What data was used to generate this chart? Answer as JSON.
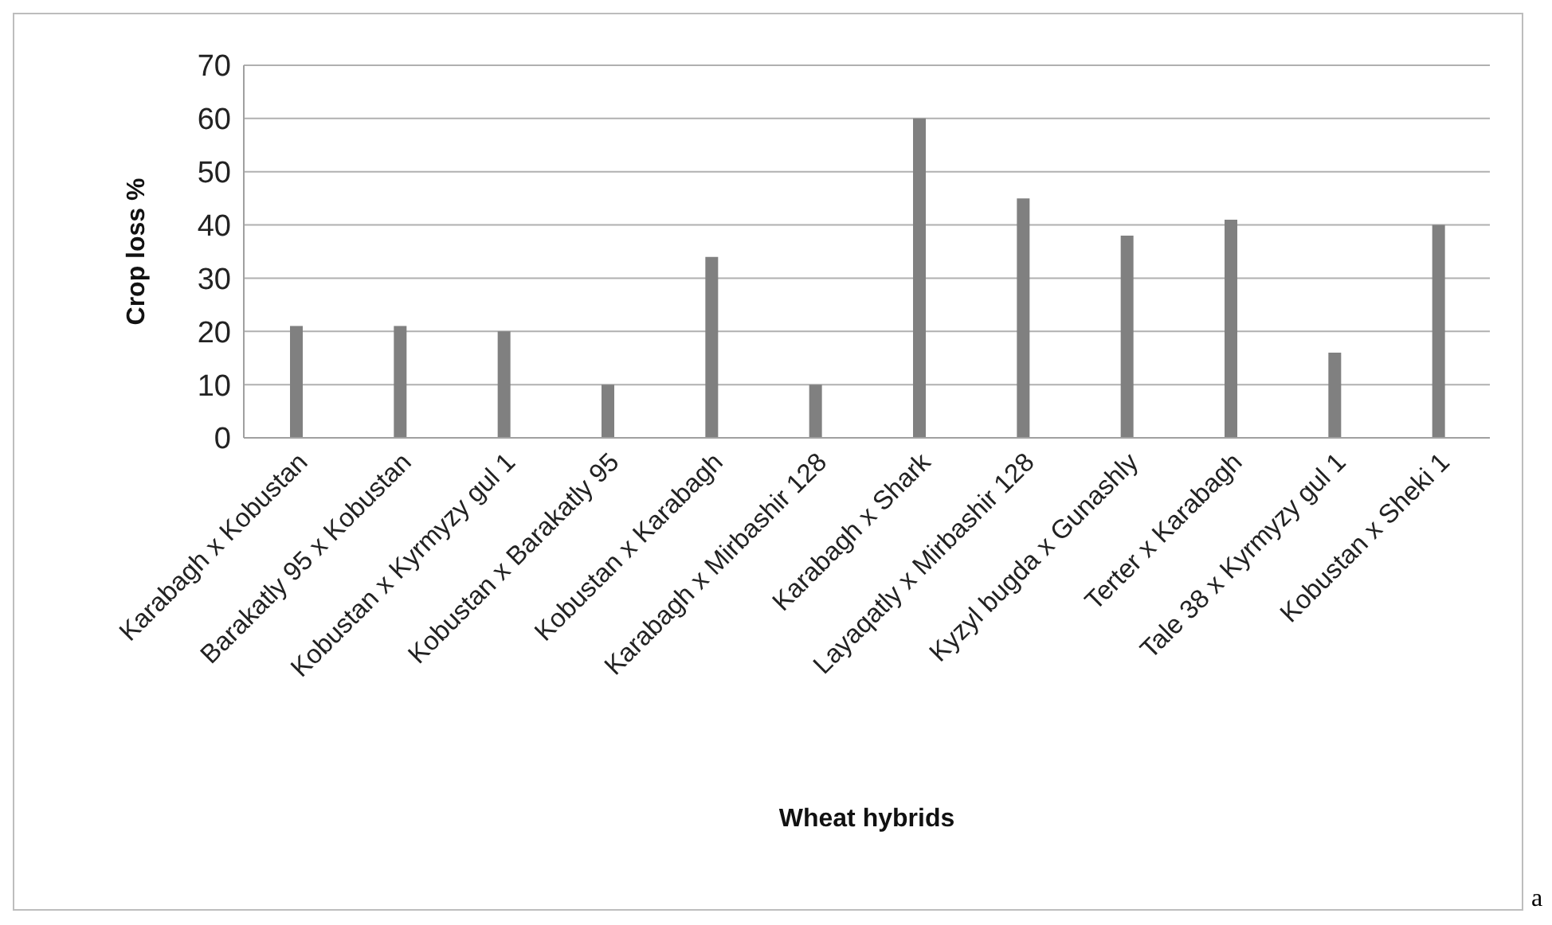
{
  "chart_data": {
    "type": "bar",
    "xlabel": "Wheat  hybrids",
    "ylabel": "Crop  loss  %",
    "categories": [
      "Karabagh x Kobustan",
      "Barakatly 95 x Kobustan",
      "Kobustan x Kyrmyzy gul 1",
      "Kobustan x Barakatly 95",
      "Kobustan x Karabagh",
      "Karabagh x Mirbashir 128",
      "Karabagh x Shark",
      "Layaqatly x Mirbashir 128",
      "Kyzyl bugda x Gunashly",
      "Terter x Karabagh",
      "Tale 38 x Kyrmyzy gul 1",
      "Kobustan x Sheki 1"
    ],
    "values": [
      21,
      21,
      20,
      10,
      34,
      10,
      60,
      45,
      38,
      41,
      16,
      40
    ],
    "color": "#808080",
    "ylim": [
      0,
      70
    ],
    "yticks": [
      0,
      10,
      20,
      30,
      40,
      50,
      60,
      70
    ],
    "grid": "y",
    "annotations": [
      "a"
    ]
  }
}
